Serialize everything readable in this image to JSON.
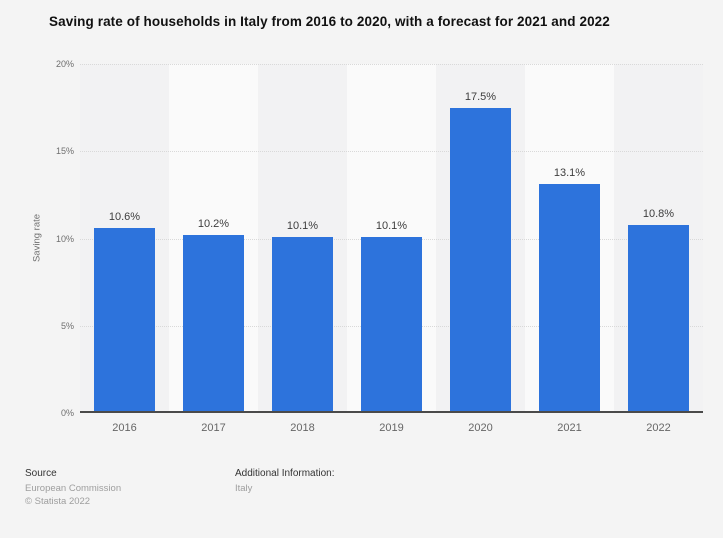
{
  "title": "Saving rate of households in Italy from 2016 to 2020, with a forecast for 2021 and 2022",
  "chart_data": {
    "type": "bar",
    "title": "Saving rate of households in Italy from 2016 to 2020, with a forecast for 2021 and 2022",
    "categories": [
      "2016",
      "2017",
      "2018",
      "2019",
      "2020",
      "2021",
      "2022"
    ],
    "values": [
      10.6,
      10.2,
      10.1,
      10.1,
      17.5,
      13.1,
      10.8
    ],
    "value_labels": [
      "10.6%",
      "10.2%",
      "10.1%",
      "10.1%",
      "17.5%",
      "13.1%",
      "10.8%"
    ],
    "xlabel": "",
    "ylabel": "Saving rate",
    "ylim": [
      0,
      20
    ],
    "yticks": [
      {
        "value": 0,
        "label": "0%"
      },
      {
        "value": 5,
        "label": "5%"
      },
      {
        "value": 10,
        "label": "10%"
      },
      {
        "value": 15,
        "label": "15%"
      },
      {
        "value": 20,
        "label": "20%"
      }
    ],
    "grid": "horizontal-dotted",
    "legend": "none",
    "background_stripes": "alternating vertical bands per category, first band darker"
  },
  "colors": {
    "bar": "#2d73dc",
    "page_background": "#f4f4f4",
    "stripe_dark": "#f2f2f3",
    "stripe_light": "#fafafa",
    "gridline": "#d9d9d9",
    "axis_line": "#4a4a4a",
    "tick_text": "#6e6e6e",
    "category_text": "#666666",
    "value_label_text": "#3d3d3d",
    "title_text": "#111111",
    "footer_heading_text": "#333333",
    "footer_text": "#9e9e9e"
  },
  "footer": {
    "source_heading": "Source",
    "source_lines": [
      "European Commission",
      "© Statista 2022"
    ],
    "additional_heading": "Additional Information:",
    "additional_lines": [
      "Italy"
    ]
  }
}
